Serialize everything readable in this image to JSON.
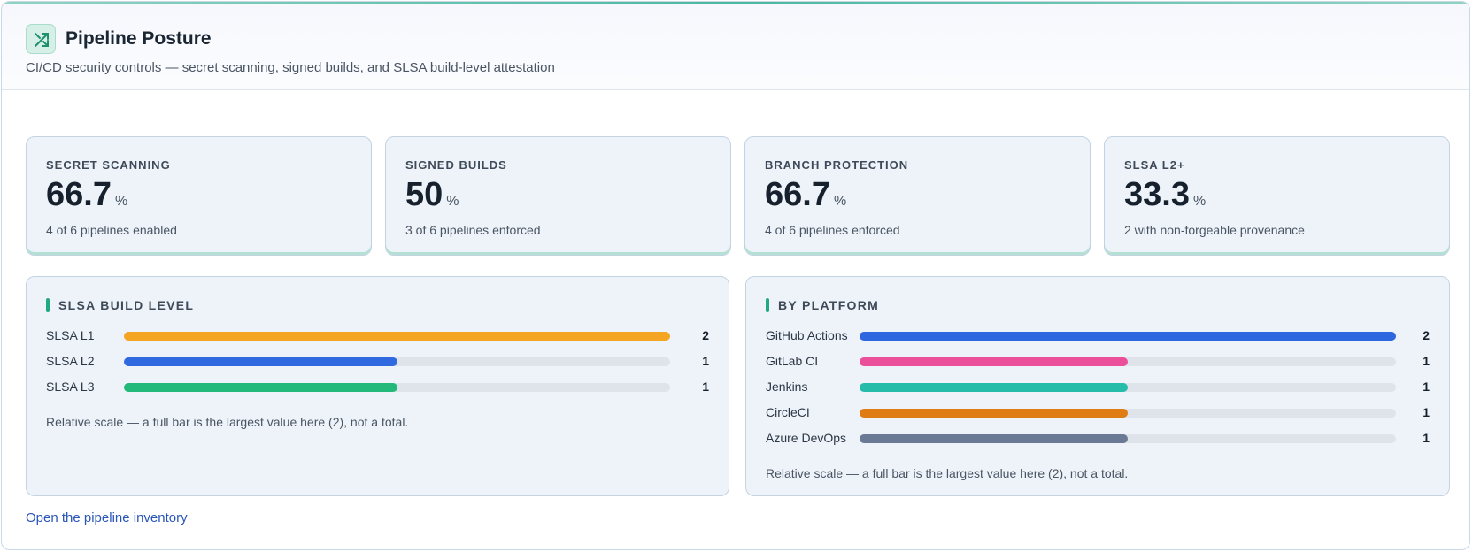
{
  "header": {
    "title": "Pipeline Posture",
    "subtitle": "CI/CD security controls — secret scanning, signed builds, and SLSA build-level attestation"
  },
  "kpis": [
    {
      "label": "SECRET SCANNING",
      "value": 66.7,
      "unit": "%",
      "caption": "4 of 6 pipelines enabled"
    },
    {
      "label": "SIGNED BUILDS",
      "value": 50,
      "unit": "%",
      "caption": "3 of 6 pipelines enforced"
    },
    {
      "label": "BRANCH PROTECTION",
      "value": 66.7,
      "unit": "%",
      "caption": "4 of 6 pipelines enforced"
    },
    {
      "label": "SLSA L2+",
      "value": 33.3,
      "unit": "%",
      "caption": "2 with non-forgeable provenance"
    }
  ],
  "panels": [
    {
      "title": "SLSA BUILD LEVEL",
      "bars": [
        {
          "label": "SLSA L1",
          "value": 2,
          "color": "#f5a524"
        },
        {
          "label": "SLSA L2",
          "value": 1,
          "color": "#3069e0"
        },
        {
          "label": "SLSA L3",
          "value": 1,
          "color": "#22b97a"
        }
      ],
      "note": "Relative scale — a full bar is the largest value here (2), not a total."
    },
    {
      "title": "BY PLATFORM",
      "bars": [
        {
          "label": "GitHub Actions",
          "value": 2,
          "color": "#2f67e0"
        },
        {
          "label": "GitLab CI",
          "value": 1,
          "color": "#ec4f9a"
        },
        {
          "label": "Jenkins",
          "value": 1,
          "color": "#25bda9"
        },
        {
          "label": "CircleCI",
          "value": 1,
          "color": "#df7c14"
        },
        {
          "label": "Azure DevOps",
          "value": 1,
          "color": "#6b7a94"
        }
      ],
      "note": "Relative scale — a full bar is the largest value here (2), not a total."
    }
  ],
  "link": "Open the pipeline inventory"
}
